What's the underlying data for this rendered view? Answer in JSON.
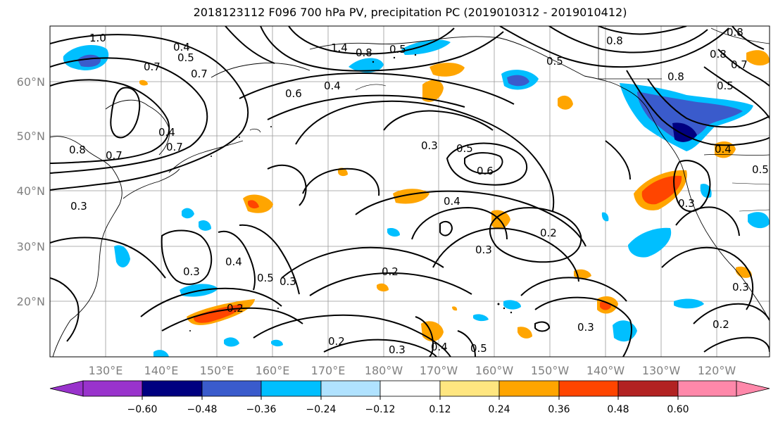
{
  "title": "2018123112 F096 700 hPa PV, precipitation PC (2019010312 - 2019010412)",
  "lat_ticks": [
    "60°N",
    "50°N",
    "40°N",
    "30°N",
    "20°N"
  ],
  "lon_ticks": [
    "130°E",
    "140°E",
    "150°E",
    "160°E",
    "170°E",
    "180°W",
    "170°W",
    "160°W",
    "150°W",
    "140°W",
    "130°W",
    "120°W"
  ],
  "contour_labels": [
    "1.0",
    "0.4",
    "0.5",
    "1.4",
    "0.8",
    "0.5",
    "0.8",
    "0.8",
    "0.4",
    "0.6",
    "0.7",
    "0.7",
    "0.5",
    "0.8",
    "0.8",
    "0.7",
    "0.8",
    "0.7",
    "0.4",
    "0.7",
    "0.3",
    "0.5",
    "0.6",
    "0.4",
    "0.4",
    "0.5",
    "0.5",
    "0.3",
    "0.4",
    "0.5",
    "0.3",
    "0.2",
    "0.2",
    "0.3",
    "0.2",
    "0.3",
    "0.2",
    "0.3",
    "0.3",
    "0.3",
    "0.2",
    "0.5",
    "0.4",
    "0.3"
  ],
  "colorbar": {
    "tick_labels": [
      "−0.60",
      "−0.48",
      "−0.36",
      "−0.24",
      "−0.12",
      "0.12",
      "0.24",
      "0.36",
      "0.48",
      "0.60"
    ],
    "colors": {
      "under": "#9933cc",
      "c1": "#000080",
      "c2": "#3a5bcc",
      "c3": "#00bfff",
      "c4": "#b0e2ff",
      "c5": "#ffffff",
      "c6": "#ffe680",
      "c7": "#ffa500",
      "c8": "#ff4500",
      "c9": "#b22222",
      "over": "#ff88aa"
    }
  }
}
